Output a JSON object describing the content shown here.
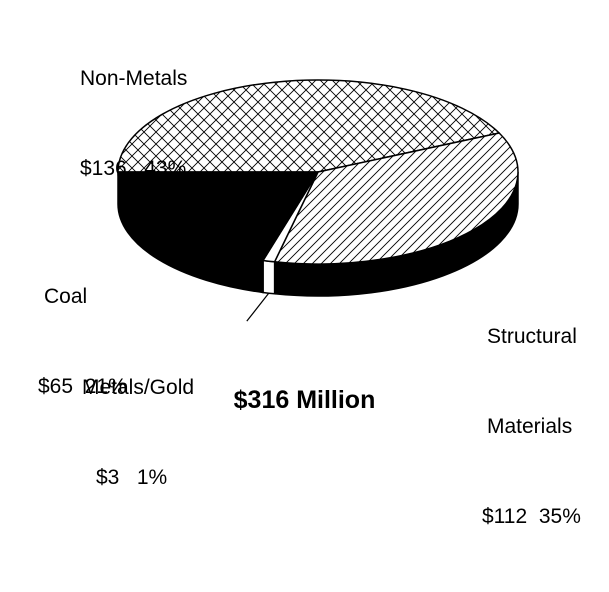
{
  "chart_data": {
    "type": "pie",
    "style": "3d",
    "total_label": "$316 Million",
    "slices": [
      {
        "name": "Non-Metals",
        "value": 136,
        "value_label": "$136",
        "percent": 43,
        "percent_label": "43%",
        "fill": "crosshatch"
      },
      {
        "name": "Structural",
        "name_line2": "Materials",
        "value": 112,
        "value_label": "$112",
        "percent": 35,
        "percent_label": "35%",
        "fill": "diagonal-hatch"
      },
      {
        "name": "Metals/Gold",
        "value": 3,
        "value_label": "$3",
        "percent": 1,
        "percent_label": "1%",
        "fill": "white"
      },
      {
        "name": "Coal",
        "value": 65,
        "value_label": "$65",
        "percent": 21,
        "percent_label": "21%",
        "fill": "black"
      }
    ]
  },
  "colors": {
    "black": "#000000",
    "white": "#ffffff"
  }
}
